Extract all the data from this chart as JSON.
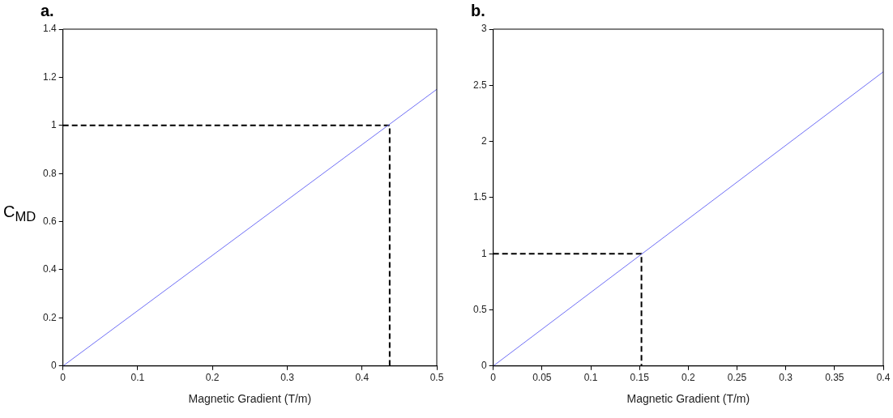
{
  "chart_data": [
    {
      "type": "line",
      "title": "a.",
      "xlabel": "Magnetic Gradient (T/m)",
      "ylabel": "C$_{MD}$",
      "xlim": [
        0,
        0.5
      ],
      "ylim": [
        0,
        1.4
      ],
      "xticks": [
        0,
        0.1,
        0.2,
        0.3,
        0.4,
        0.5
      ],
      "yticks": [
        0,
        0.2,
        0.4,
        0.6,
        0.8,
        1,
        1.2,
        1.4
      ],
      "grid": false,
      "legend": false,
      "marker": "none",
      "series": [
        {
          "color": "#6f6ff5",
          "x": [
            0,
            0.5
          ],
          "values": [
            0,
            1.15
          ],
          "line_style": "solid"
        },
        {
          "color": "#000000",
          "x": [
            0,
            0.437,
            0.437
          ],
          "values": [
            1,
            1,
            0
          ],
          "line_style": "dashed"
        }
      ]
    },
    {
      "type": "line",
      "title": "b.",
      "xlabel": "Magnetic Gradient (T/m)",
      "xlim": [
        0,
        0.4
      ],
      "ylim": [
        0,
        3
      ],
      "xticks": [
        0,
        0.05,
        0.1,
        0.15,
        0.2,
        0.25,
        0.3,
        0.35,
        0.4
      ],
      "yticks": [
        0,
        0.5,
        1,
        1.5,
        2,
        2.5,
        3
      ],
      "grid": false,
      "legend": false,
      "marker": "none",
      "series": [
        {
          "color": "#6f6ff5",
          "x": [
            0,
            0.4
          ],
          "values": [
            0,
            2.62
          ],
          "line_style": "solid"
        },
        {
          "color": "#000000",
          "x": [
            0,
            0.152,
            0.152
          ],
          "values": [
            1,
            1,
            0
          ],
          "line_style": "dashed"
        }
      ]
    }
  ]
}
